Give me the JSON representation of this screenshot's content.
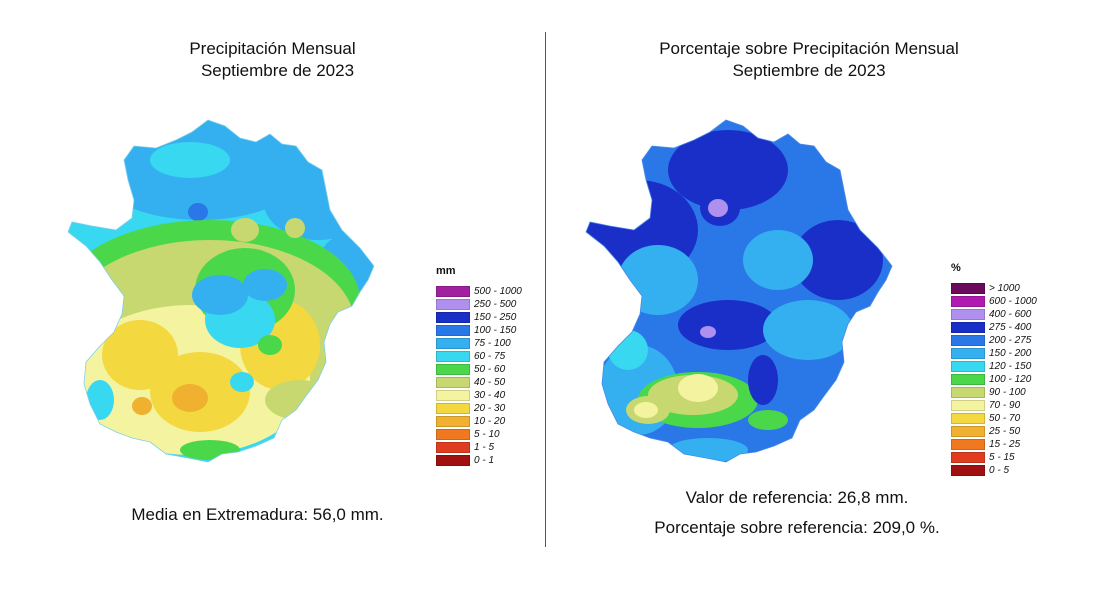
{
  "left": {
    "title_line1": "Precipitación Mensual",
    "title_line2": "Septiembre de 2023",
    "legend_title": "mm",
    "legend": [
      {
        "label": "500 - 1000",
        "color": "#a020a0"
      },
      {
        "label": "250 - 500",
        "color": "#b090ee"
      },
      {
        "label": "150 - 250",
        "color": "#1a2fc8"
      },
      {
        "label": "100 - 150",
        "color": "#2a78e8"
      },
      {
        "label": "75 - 100",
        "color": "#34b0f0"
      },
      {
        "label": "60 - 75",
        "color": "#38d8f0"
      },
      {
        "label": "50 - 60",
        "color": "#4ad84a"
      },
      {
        "label": "40 - 50",
        "color": "#c8d870"
      },
      {
        "label": "30 - 40",
        "color": "#f4f4a0"
      },
      {
        "label": "20 - 30",
        "color": "#f4d840"
      },
      {
        "label": "10 - 20",
        "color": "#f0b030"
      },
      {
        "label": "5 - 10",
        "color": "#f07820"
      },
      {
        "label": "1 - 5",
        "color": "#e03c20"
      },
      {
        "label": "0 - 1",
        "color": "#a01010"
      }
    ],
    "footer": "Media en Extremadura: 56,0 mm."
  },
  "right": {
    "title_line1": "Porcentaje sobre Precipitación Mensual",
    "title_line2": "Septiembre de 2023",
    "legend_title": "%",
    "legend": [
      {
        "label": "> 1000",
        "color": "#6a0a5a"
      },
      {
        "label": "600 - 1000",
        "color": "#b01ab0"
      },
      {
        "label": "400 - 600",
        "color": "#b090ee"
      },
      {
        "label": "275 - 400",
        "color": "#1a2fc8"
      },
      {
        "label": "200 - 275",
        "color": "#2a78e8"
      },
      {
        "label": "150 - 200",
        "color": "#34b0f0"
      },
      {
        "label": "120 - 150",
        "color": "#38d8f0"
      },
      {
        "label": "100 - 120",
        "color": "#4ad84a"
      },
      {
        "label": "90 - 100",
        "color": "#c8d870"
      },
      {
        "label": "70 - 90",
        "color": "#f4f4a0"
      },
      {
        "label": "50 - 70",
        "color": "#f4d840"
      },
      {
        "label": "25 - 50",
        "color": "#f0b030"
      },
      {
        "label": "15 - 25",
        "color": "#f07820"
      },
      {
        "label": "5 - 15",
        "color": "#e03c20"
      },
      {
        "label": "0 - 5",
        "color": "#a01010"
      }
    ],
    "footer_line1": "Valor de referencia: 26,8 mm.",
    "footer_line2": "Porcentaje sobre referencia: 209,0 %."
  }
}
